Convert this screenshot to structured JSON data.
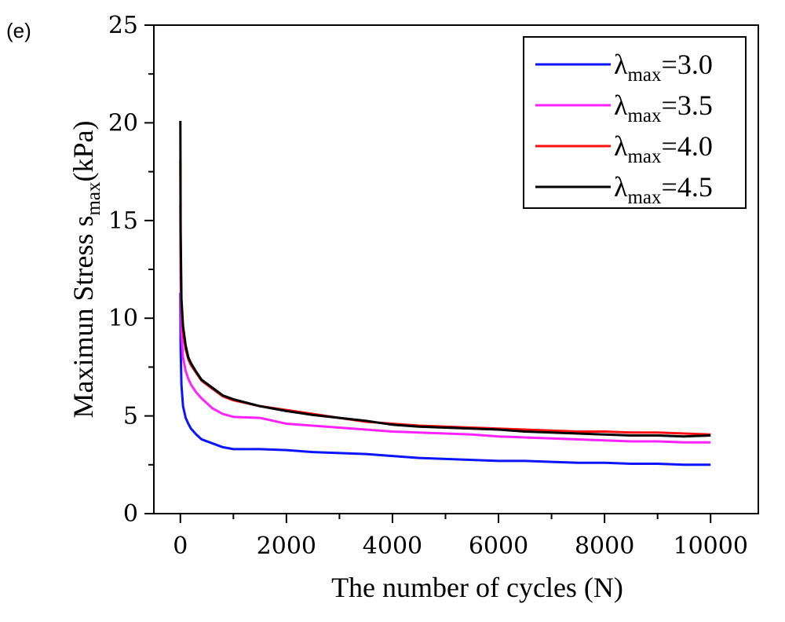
{
  "panel_label": "(e)",
  "chart_data": {
    "type": "line",
    "title": "",
    "xlabel": "The number of cycles (N)",
    "ylabel": {
      "main": "Maximun Stress s",
      "sub": "max",
      "unit": "(kPa)"
    },
    "xlim": [
      -500,
      10900
    ],
    "ylim": [
      0,
      25
    ],
    "x_ticks": [
      0,
      2000,
      4000,
      6000,
      8000,
      10000
    ],
    "x_tick_labels": [
      "0",
      "2000",
      "4000",
      "6000",
      "8000",
      "10000"
    ],
    "y_ticks": [
      0,
      5,
      10,
      15,
      20,
      25
    ],
    "y_tick_labels": [
      "0",
      "5",
      "10",
      "15",
      "20",
      "25"
    ],
    "grid": false,
    "legend_position": "top-right",
    "series": [
      {
        "name": {
          "symbol": "λ",
          "sub": "max",
          "value": "=3.0"
        },
        "color": "#0a14ff",
        "x": [
          0,
          5,
          20,
          50,
          100,
          150,
          200,
          300,
          400,
          600,
          800,
          1000,
          1500,
          2000,
          2500,
          3000,
          3500,
          4000,
          4500,
          5000,
          5500,
          6000,
          6500,
          7000,
          7500,
          8000,
          8500,
          9000,
          9500,
          10000
        ],
        "y": [
          11.3,
          8.5,
          6.6,
          5.5,
          4.9,
          4.6,
          4.35,
          4.05,
          3.8,
          3.6,
          3.4,
          3.3,
          3.3,
          3.25,
          3.15,
          3.1,
          3.05,
          2.95,
          2.85,
          2.8,
          2.75,
          2.7,
          2.7,
          2.65,
          2.6,
          2.6,
          2.55,
          2.55,
          2.5,
          2.5
        ]
      },
      {
        "name": {
          "symbol": "λ",
          "sub": "max",
          "value": "=3.5"
        },
        "color": "#ff22ff",
        "x": [
          0,
          5,
          20,
          50,
          100,
          150,
          200,
          300,
          400,
          600,
          800,
          1000,
          1500,
          2000,
          2500,
          3000,
          3500,
          4000,
          4500,
          5000,
          5500,
          6000,
          6500,
          7000,
          7500,
          8000,
          8500,
          9000,
          9500,
          10000
        ],
        "y": [
          15.8,
          12.0,
          9.3,
          8.0,
          7.3,
          6.9,
          6.6,
          6.2,
          5.9,
          5.4,
          5.1,
          4.95,
          4.9,
          4.6,
          4.5,
          4.4,
          4.3,
          4.2,
          4.15,
          4.1,
          4.05,
          3.95,
          3.9,
          3.85,
          3.8,
          3.75,
          3.7,
          3.7,
          3.65,
          3.65
        ]
      },
      {
        "name": {
          "symbol": "λ",
          "sub": "max",
          "value": "=4.0"
        },
        "color": "#ff0f0f",
        "x": [
          0,
          5,
          20,
          50,
          100,
          150,
          200,
          300,
          400,
          600,
          800,
          1000,
          1500,
          2000,
          2500,
          3000,
          3500,
          4000,
          4500,
          5000,
          5500,
          6000,
          6500,
          7000,
          7500,
          8000,
          8500,
          9000,
          9500,
          10000
        ],
        "y": [
          18.1,
          13.5,
          10.6,
          9.3,
          8.4,
          7.9,
          7.6,
          7.2,
          6.8,
          6.4,
          6.0,
          5.8,
          5.5,
          5.3,
          5.1,
          4.9,
          4.7,
          4.6,
          4.5,
          4.45,
          4.4,
          4.35,
          4.3,
          4.25,
          4.2,
          4.2,
          4.15,
          4.15,
          4.1,
          4.05
        ]
      },
      {
        "name": {
          "symbol": "λ",
          "sub": "max",
          "value": "=4.5"
        },
        "color": "#000000",
        "x": [
          0,
          5,
          20,
          50,
          100,
          150,
          200,
          300,
          400,
          600,
          800,
          1000,
          1500,
          2000,
          2500,
          3000,
          3500,
          4000,
          4500,
          5000,
          5500,
          6000,
          6500,
          7000,
          7500,
          8000,
          8500,
          9000,
          9500,
          10000
        ],
        "y": [
          20.1,
          14.5,
          11.0,
          9.6,
          8.6,
          8.0,
          7.7,
          7.25,
          6.85,
          6.45,
          6.05,
          5.85,
          5.5,
          5.25,
          5.05,
          4.9,
          4.75,
          4.55,
          4.45,
          4.4,
          4.35,
          4.3,
          4.2,
          4.15,
          4.1,
          4.05,
          4.0,
          4.0,
          3.95,
          4.0
        ]
      }
    ]
  }
}
